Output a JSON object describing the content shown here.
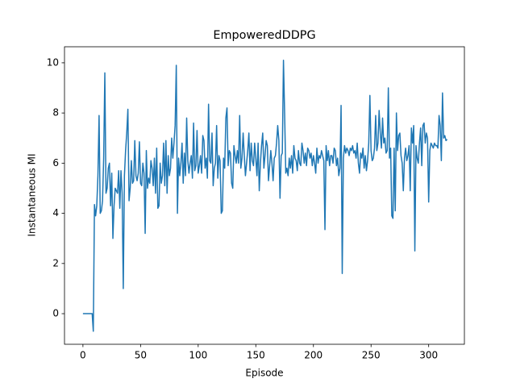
{
  "chart_data": {
    "type": "line",
    "title": "EmpoweredDDPG",
    "x_label": "Episode",
    "y_label": "Instantaneous MI",
    "color": "#1f77b4",
    "x": [
      0,
      1,
      2,
      3,
      4,
      5,
      6,
      7,
      8,
      9,
      10,
      11,
      12,
      13,
      14,
      15,
      16,
      17,
      18,
      19,
      20,
      21,
      22,
      23,
      24,
      25,
      26,
      27,
      28,
      29,
      30,
      31,
      32,
      33,
      34,
      35,
      36,
      37,
      38,
      39,
      40,
      41,
      42,
      43,
      44,
      45,
      46,
      47,
      48,
      49,
      50,
      51,
      52,
      53,
      54,
      55,
      56,
      57,
      58,
      59,
      60,
      61,
      62,
      63,
      64,
      65,
      66,
      67,
      68,
      69,
      70,
      71,
      72,
      73,
      74,
      75,
      76,
      77,
      78,
      79,
      80,
      81,
      82,
      83,
      84,
      85,
      86,
      87,
      88,
      89,
      90,
      91,
      92,
      93,
      94,
      95,
      96,
      97,
      98,
      99,
      100,
      101,
      102,
      103,
      104,
      105,
      106,
      107,
      108,
      109,
      110,
      111,
      112,
      113,
      114,
      115,
      116,
      117,
      118,
      119,
      120,
      121,
      122,
      123,
      124,
      125,
      126,
      127,
      128,
      129,
      130,
      131,
      132,
      133,
      134,
      135,
      136,
      137,
      138,
      139,
      140,
      141,
      142,
      143,
      144,
      145,
      146,
      147,
      148,
      149,
      150,
      151,
      152,
      153,
      154,
      155,
      156,
      157,
      158,
      159,
      160,
      161,
      162,
      163,
      164,
      165,
      166,
      167,
      168,
      169,
      170,
      171,
      172,
      173,
      174,
      175,
      176,
      177,
      178,
      179,
      180,
      181,
      182,
      183,
      184,
      185,
      186,
      187,
      188,
      189,
      190,
      191,
      192,
      193,
      194,
      195,
      196,
      197,
      198,
      199,
      200,
      201,
      202,
      203,
      204,
      205,
      206,
      207,
      208,
      209,
      210,
      211,
      212,
      213,
      214,
      215,
      216,
      217,
      218,
      219,
      220,
      221,
      222,
      223,
      224,
      225,
      226,
      227,
      228,
      229,
      230,
      231,
      232,
      233,
      234,
      235,
      236,
      237,
      238,
      239,
      240,
      241,
      242,
      243,
      244,
      245,
      246,
      247,
      248,
      249,
      250,
      251,
      252,
      253,
      254,
      255,
      256,
      257,
      258,
      259,
      260,
      261,
      262,
      263,
      264,
      265,
      266,
      267,
      268,
      269,
      270,
      271,
      272,
      273,
      274,
      275,
      276,
      277,
      278,
      279,
      280,
      281,
      282,
      283,
      284,
      285,
      286,
      287,
      288,
      289,
      290,
      291,
      292,
      293,
      294,
      295,
      296,
      297,
      298,
      299,
      300,
      301,
      302,
      303,
      304,
      305,
      306,
      307,
      308,
      309,
      310,
      311,
      312,
      313,
      314,
      315,
      316
    ],
    "values": [
      0,
      0,
      0,
      0,
      0,
      0,
      0,
      0,
      0,
      -0.7,
      4.35,
      3.9,
      4.3,
      5.5,
      7.9,
      4.0,
      4.1,
      4.5,
      6.2,
      9.6,
      4.8,
      5.0,
      5.8,
      6.0,
      4.3,
      5.6,
      3.0,
      4.3,
      5.0,
      4.9,
      4.8,
      5.7,
      4.2,
      5.7,
      4.8,
      1.0,
      5.5,
      6.5,
      7.2,
      8.15,
      4.5,
      5.0,
      6.1,
      5.2,
      5.3,
      6.9,
      5.5,
      5.3,
      5.6,
      6.85,
      5.2,
      5.1,
      6.0,
      5.6,
      3.2,
      6.5,
      5.0,
      5.4,
      5.2,
      6.1,
      5.8,
      5.1,
      6.2,
      4.8,
      6.6,
      4.2,
      4.3,
      6.0,
      5.2,
      5.5,
      6.8,
      5.1,
      6.9,
      4.8,
      6.3,
      5.5,
      5.8,
      7.0,
      6.2,
      6.8,
      7.5,
      9.9,
      4.0,
      6.2,
      5.5,
      6.0,
      6.8,
      5.2,
      6.4,
      5.5,
      7.8,
      6.1,
      5.6,
      6.0,
      6.3,
      5.4,
      7.6,
      5.7,
      5.9,
      7.3,
      5.6,
      5.9,
      6.3,
      5.6,
      7.1,
      6.9,
      5.8,
      6.2,
      5.4,
      8.35,
      6.1,
      6.0,
      7.2,
      5.1,
      5.8,
      6.0,
      7.5,
      5.4,
      6.3,
      6.1,
      4.0,
      4.1,
      6.2,
      5.8,
      7.8,
      8.2,
      5.9,
      6.5,
      6.4,
      5.2,
      5.0,
      6.7,
      6.3,
      6.0,
      6.5,
      6.0,
      7.9,
      5.8,
      6.2,
      7.2,
      6.3,
      5.5,
      6.0,
      6.5,
      7.2,
      5.7,
      6.8,
      6.1,
      5.9,
      6.8,
      6.2,
      5.5,
      6.8,
      4.9,
      6.0,
      6.7,
      7.2,
      5.8,
      6.3,
      6.9,
      6.7,
      5.3,
      5.9,
      6.5,
      6.0,
      5.3,
      6.2,
      6.3,
      6.8,
      7.5,
      6.9,
      4.6,
      6.3,
      6.4,
      10.1,
      8.0,
      5.6,
      5.8,
      5.5,
      6.2,
      5.8,
      6.3,
      5.6,
      6.7,
      6.2,
      6.1,
      5.7,
      6.5,
      6.0,
      5.9,
      6.8,
      6.5,
      6.0,
      6.4,
      5.9,
      6.6,
      6.5,
      6.2,
      6.4,
      5.9,
      6.3,
      6.0,
      5.6,
      6.6,
      6.0,
      6.3,
      6.2,
      6.5,
      6.3,
      6.1,
      3.35,
      6.7,
      6.1,
      6.5,
      5.9,
      6.3,
      6.3,
      6.0,
      6.6,
      6.5,
      5.9,
      6.2,
      5.5,
      5.8,
      8.3,
      1.6,
      6.2,
      6.7,
      6.4,
      6.6,
      6.5,
      6.3,
      6.6,
      6.5,
      6.7,
      6.4,
      6.5,
      6.2,
      6.8,
      6.0,
      5.6,
      6.4,
      6.2,
      6.6,
      5.8,
      6.3,
      5.7,
      6.1,
      6.8,
      8.7,
      6.5,
      6.1,
      6.2,
      6.6,
      7.9,
      6.5,
      6.8,
      8.1,
      7.2,
      6.6,
      7.8,
      6.8,
      7.0,
      6.4,
      6.5,
      9.0,
      6.2,
      6.6,
      3.9,
      3.8,
      6.6,
      4.1,
      8.0,
      6.5,
      7.1,
      7.2,
      6.3,
      6.0,
      4.9,
      6.2,
      6.6,
      6.1,
      6.3,
      6.7,
      4.9,
      7.4,
      6.8,
      7.5,
      2.5,
      6.7,
      6.2,
      6.0,
      6.8,
      7.4,
      5.9,
      7.5,
      7.6,
      6.8,
      7.2,
      7.0,
      4.45,
      6.5,
      6.8,
      6.7,
      6.6,
      6.8,
      6.7,
      6.7,
      6.6,
      7.9,
      7.5,
      6.1,
      8.8,
      7.0,
      7.1,
      6.9,
      6.95
    ],
    "xlim": [
      -16,
      331
    ],
    "ylim": [
      -1.22,
      10.64
    ],
    "xticks": [
      0,
      50,
      100,
      150,
      200,
      250,
      300
    ],
    "yticks": [
      0,
      2,
      4,
      6,
      8,
      10
    ],
    "grid": false
  }
}
